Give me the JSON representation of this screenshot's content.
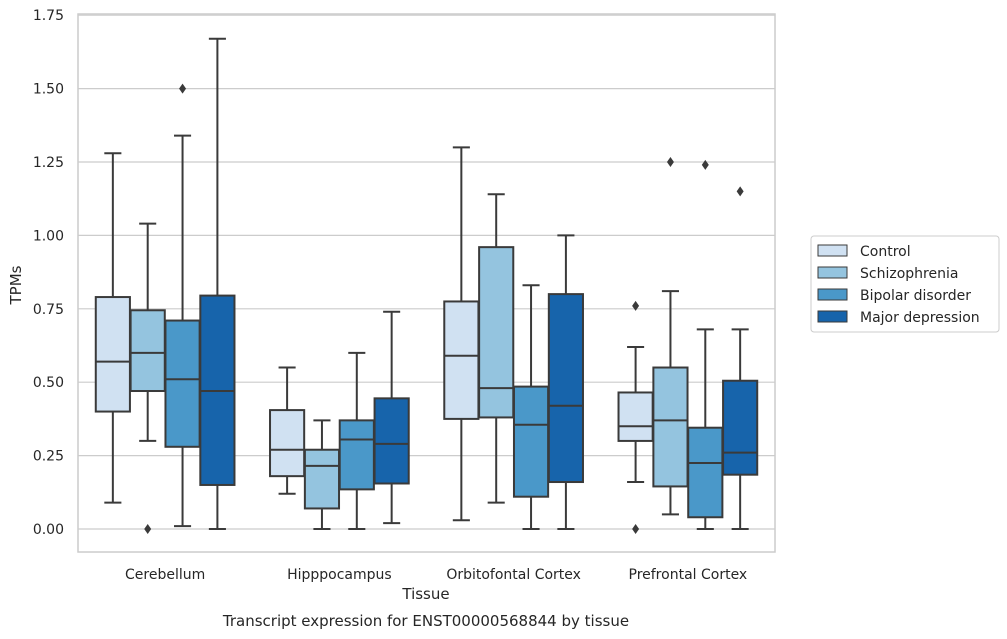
{
  "chart_data": {
    "type": "boxplot",
    "title": "",
    "xlabel": "Tissue",
    "ylabel": "TPMs",
    "caption": "Transcript expression for ENST00000568844 by tissue",
    "ylim": [
      -0.08,
      1.76
    ],
    "yticks": [
      0.0,
      0.25,
      0.5,
      0.75,
      1.0,
      1.25,
      1.5,
      1.75
    ],
    "ytick_labels": [
      "0.00",
      "0.25",
      "0.50",
      "0.75",
      "1.00",
      "1.25",
      "1.50",
      "1.75"
    ],
    "categories": [
      "Cerebellum",
      "Hipppocampus",
      "Orbitofontal Cortex",
      "Prefrontal Cortex"
    ],
    "grid": "horizontal",
    "legend_position": "right",
    "series": [
      {
        "name": "Control",
        "color": "#d0e1f2",
        "boxes": [
          {
            "whislo": 0.09,
            "q1": 0.4,
            "med": 0.57,
            "q3": 0.79,
            "whishi": 1.28,
            "fliers": []
          },
          {
            "whislo": 0.12,
            "q1": 0.18,
            "med": 0.27,
            "q3": 0.405,
            "whishi": 0.55,
            "fliers": []
          },
          {
            "whislo": 0.03,
            "q1": 0.375,
            "med": 0.59,
            "q3": 0.775,
            "whishi": 1.3,
            "fliers": []
          },
          {
            "whislo": 0.16,
            "q1": 0.3,
            "med": 0.35,
            "q3": 0.465,
            "whishi": 0.62,
            "fliers": [
              0.76,
              0.0
            ]
          }
        ]
      },
      {
        "name": "Schizophrenia",
        "color": "#94c4df",
        "boxes": [
          {
            "whislo": 0.3,
            "q1": 0.47,
            "med": 0.6,
            "q3": 0.745,
            "whishi": 1.04,
            "fliers": [
              0.0
            ]
          },
          {
            "whislo": 0.0,
            "q1": 0.07,
            "med": 0.215,
            "q3": 0.27,
            "whishi": 0.37,
            "fliers": []
          },
          {
            "whislo": 0.09,
            "q1": 0.38,
            "med": 0.48,
            "q3": 0.96,
            "whishi": 1.14,
            "fliers": []
          },
          {
            "whislo": 0.05,
            "q1": 0.145,
            "med": 0.37,
            "q3": 0.55,
            "whishi": 0.81,
            "fliers": [
              1.25
            ]
          }
        ]
      },
      {
        "name": "Bipolar disorder",
        "color": "#4a98c9",
        "boxes": [
          {
            "whislo": 0.01,
            "q1": 0.28,
            "med": 0.51,
            "q3": 0.71,
            "whishi": 1.34,
            "fliers": [
              1.5
            ]
          },
          {
            "whislo": 0.0,
            "q1": 0.135,
            "med": 0.305,
            "q3": 0.37,
            "whishi": 0.6,
            "fliers": []
          },
          {
            "whislo": 0.0,
            "q1": 0.11,
            "med": 0.355,
            "q3": 0.485,
            "whishi": 0.83,
            "fliers": []
          },
          {
            "whislo": 0.0,
            "q1": 0.04,
            "med": 0.225,
            "q3": 0.345,
            "whishi": 0.68,
            "fliers": [
              1.24
            ]
          }
        ]
      },
      {
        "name": "Major depression",
        "color": "#1764ab",
        "boxes": [
          {
            "whislo": 0.0,
            "q1": 0.15,
            "med": 0.47,
            "q3": 0.795,
            "whishi": 1.67,
            "fliers": []
          },
          {
            "whislo": 0.02,
            "q1": 0.155,
            "med": 0.29,
            "q3": 0.445,
            "whishi": 0.74,
            "fliers": []
          },
          {
            "whislo": 0.0,
            "q1": 0.16,
            "med": 0.42,
            "q3": 0.8,
            "whishi": 1.0,
            "fliers": []
          },
          {
            "whislo": 0.0,
            "q1": 0.185,
            "med": 0.26,
            "q3": 0.505,
            "whishi": 0.68,
            "fliers": [
              1.15
            ]
          }
        ]
      }
    ],
    "colors": {
      "grid": "#cccccc",
      "frame": "#cccccc",
      "line": "#3a3a3a"
    }
  }
}
